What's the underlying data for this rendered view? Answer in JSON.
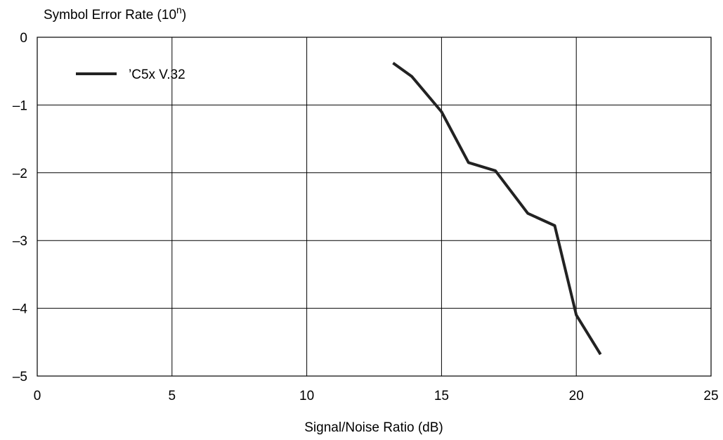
{
  "chart_data": {
    "type": "line",
    "xlabel": "Signal/Noise Ratio (dB)",
    "ylabel": {
      "text": "Symbol Error Rate (10",
      "superscript": "n",
      "suffix": ")"
    },
    "xlim": [
      0,
      25
    ],
    "ylim": [
      -5,
      0
    ],
    "x_ticks": [
      0,
      5,
      10,
      15,
      20,
      25
    ],
    "y_ticks": [
      0,
      -1,
      -2,
      -3,
      -4,
      -5
    ],
    "x_tick_labels": [
      "0",
      "5",
      "10",
      "15",
      "20",
      "25"
    ],
    "y_tick_labels": [
      "0",
      "–1",
      "–2",
      "–3",
      "–4",
      "–5"
    ],
    "grid": true,
    "legend_position": "top-left",
    "series": [
      {
        "name": "’C5x V.32",
        "color": "#222222",
        "x": [
          13.2,
          13.9,
          15.0,
          16.0,
          17.0,
          18.2,
          19.2,
          20.0,
          20.9
        ],
        "y": [
          -0.38,
          -0.58,
          -1.1,
          -1.85,
          -1.97,
          -2.6,
          -2.78,
          -4.1,
          -4.68
        ]
      }
    ]
  }
}
